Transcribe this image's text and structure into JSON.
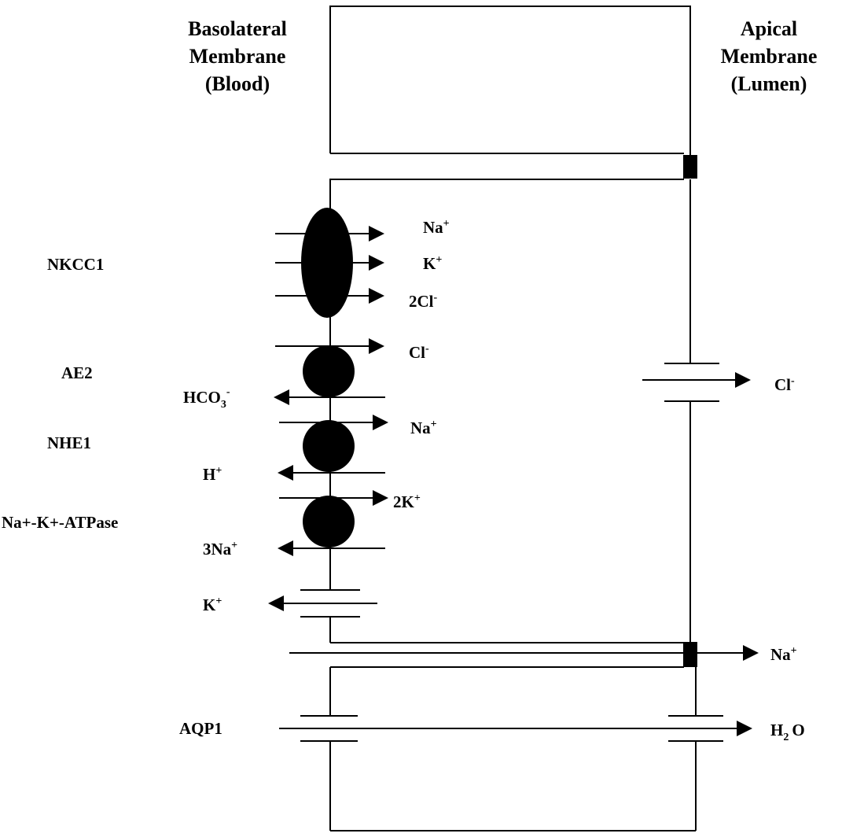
{
  "headers": {
    "basolateral": [
      "Basolateral",
      "Membrane",
      "(Blood)"
    ],
    "apical": [
      "Apical",
      "Membrane",
      "(Lumen)"
    ]
  },
  "transporters": {
    "nkcc1": "NKCC1",
    "ae2": "AE2",
    "nhe1": "NHE1",
    "atpase": "Na+-K+-ATPase",
    "aqp1": "AQP1"
  },
  "ions": {
    "nkcc1_na": {
      "base": "Na",
      "sup": "+"
    },
    "nkcc1_k": {
      "base": "K",
      "sup": "+"
    },
    "nkcc1_cl": {
      "base": "2Cl",
      "sup": "-"
    },
    "ae2_cl": {
      "base": "Cl",
      "sup": "-"
    },
    "ae2_hco3": {
      "base": "HCO",
      "sub": "3",
      "sup": "-"
    },
    "nhe1_na": {
      "base": "Na",
      "sup": "+"
    },
    "nhe1_h": {
      "base": "H",
      "sup": "+"
    },
    "atpase_k": {
      "base": "2K",
      "sup": "+"
    },
    "atpase_na": {
      "base": "3Na",
      "sup": "+"
    },
    "k_channel": {
      "base": "K",
      "sup": "+"
    },
    "apical_cl": {
      "base": "Cl",
      "sup": "-"
    },
    "para_na": {
      "base": "Na",
      "sup": "+"
    },
    "water": {
      "base": "H",
      "sub": "2",
      "tail": "O"
    }
  },
  "colors": {
    "ink": "#000000",
    "background": "#ffffff"
  }
}
